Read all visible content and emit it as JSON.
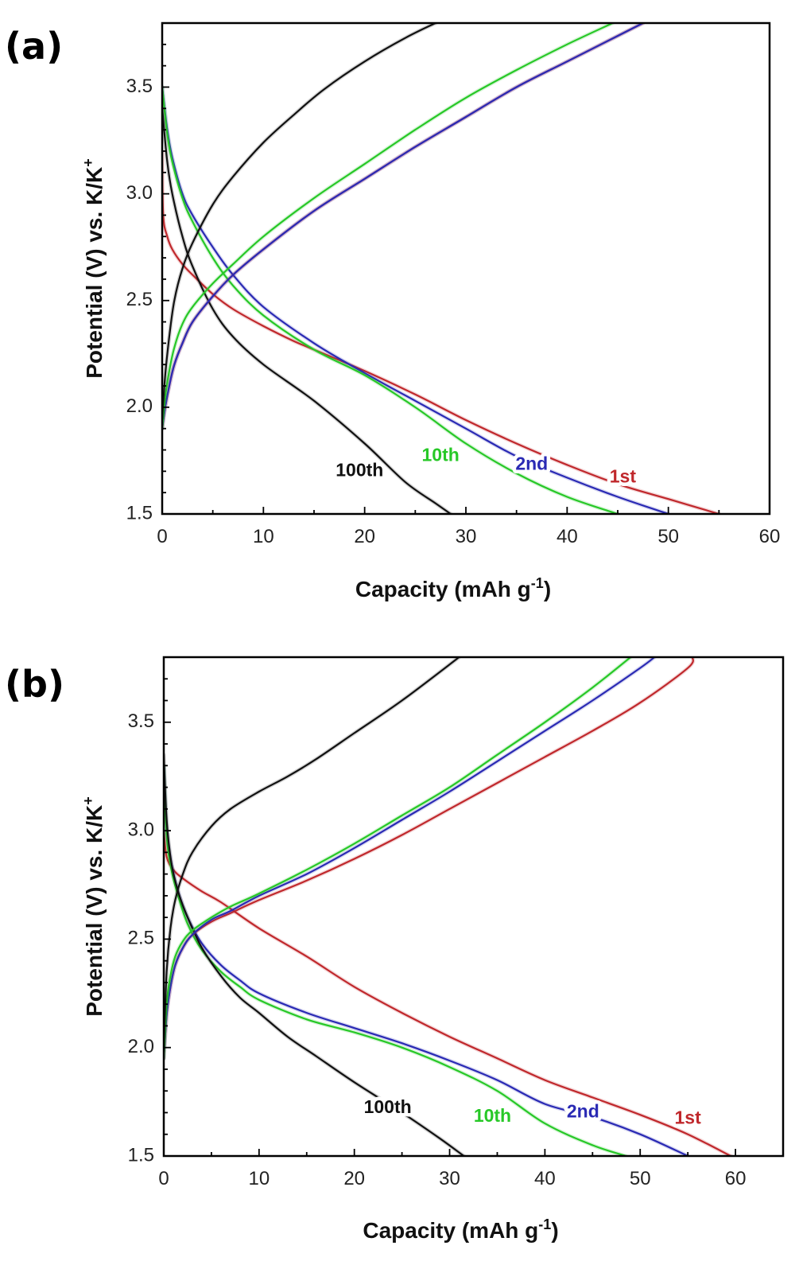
{
  "figure": {
    "background": "#ffffff",
    "colors": {
      "1st": "#c0282c",
      "2nd": "#2a2ab4",
      "10th": "#27c827",
      "100th": "#111111"
    }
  },
  "chart_data": [
    {
      "type": "line",
      "panel_label": "(a)",
      "xlabel": "Capacity (mAh g",
      "xlabel_sup": "-1",
      "xlabel_end": ")",
      "ylabel": "Potential (V) vs. K/K",
      "ylabel_sup": "+",
      "xlim": [
        0,
        60
      ],
      "ylim": [
        1.5,
        3.8
      ],
      "xticks": [
        0,
        10,
        20,
        30,
        40,
        50,
        60
      ],
      "yticks": [
        1.5,
        2.0,
        2.5,
        3.0,
        3.5
      ],
      "grid": false,
      "curve_labels": [
        {
          "text": "100th",
          "series": "100th",
          "x": 19.5,
          "y": 1.7
        },
        {
          "text": "10th",
          "series": "10th",
          "x": 27.5,
          "y": 1.77
        },
        {
          "text": "2nd",
          "series": "2nd",
          "x": 36.5,
          "y": 1.73
        },
        {
          "text": "1st",
          "series": "1st",
          "x": 45.5,
          "y": 1.67
        }
      ],
      "series": [
        {
          "key": "1st",
          "role": "discharge",
          "x": [
            0,
            0.1,
            0.5,
            1,
            2,
            3,
            5,
            7,
            10,
            13,
            16,
            20,
            25,
            30,
            35,
            40,
            45,
            50,
            55
          ],
          "y": [
            3.2,
            2.9,
            2.8,
            2.74,
            2.67,
            2.62,
            2.53,
            2.46,
            2.38,
            2.31,
            2.25,
            2.17,
            2.06,
            1.94,
            1.83,
            1.73,
            1.64,
            1.57,
            1.5
          ]
        },
        {
          "key": "2nd",
          "role": "discharge",
          "x": [
            0,
            0.5,
            1,
            2,
            3,
            5,
            7,
            10,
            15,
            20,
            25,
            30,
            35,
            40,
            45,
            50
          ],
          "y": [
            3.5,
            3.3,
            3.17,
            3.0,
            2.9,
            2.75,
            2.62,
            2.47,
            2.3,
            2.16,
            2.03,
            1.9,
            1.77,
            1.67,
            1.58,
            1.5
          ]
        },
        {
          "key": "10th",
          "role": "discharge",
          "x": [
            0,
            0.5,
            1,
            2,
            3,
            5,
            7,
            10,
            15,
            20,
            25,
            30,
            35,
            40,
            45
          ],
          "y": [
            3.5,
            3.28,
            3.15,
            2.98,
            2.87,
            2.7,
            2.57,
            2.43,
            2.27,
            2.15,
            2.0,
            1.83,
            1.69,
            1.58,
            1.5
          ]
        },
        {
          "key": "100th",
          "role": "discharge",
          "x": [
            0,
            0.5,
            1,
            2,
            3,
            5,
            7,
            10,
            15,
            20,
            24,
            27,
            28.5
          ],
          "y": [
            3.4,
            3.15,
            3.0,
            2.8,
            2.66,
            2.46,
            2.33,
            2.2,
            2.03,
            1.83,
            1.65,
            1.55,
            1.5
          ]
        },
        {
          "key": "1st",
          "role": "charge",
          "x": [
            0,
            0.3,
            0.7,
            1.2,
            2,
            3,
            5,
            7,
            10,
            15,
            20,
            25,
            30,
            35,
            40,
            45,
            47.5
          ],
          "y": [
            1.9,
            2.0,
            2.1,
            2.2,
            2.3,
            2.4,
            2.52,
            2.62,
            2.74,
            2.92,
            3.07,
            3.22,
            3.36,
            3.5,
            3.62,
            3.74,
            3.8
          ]
        },
        {
          "key": "2nd",
          "role": "charge",
          "x": [
            0,
            0.3,
            0.7,
            1.2,
            2,
            3,
            5,
            7,
            10,
            15,
            20,
            25,
            30,
            35,
            40,
            45,
            47.5
          ],
          "y": [
            1.9,
            2.0,
            2.1,
            2.2,
            2.3,
            2.4,
            2.52,
            2.62,
            2.74,
            2.92,
            3.07,
            3.22,
            3.36,
            3.5,
            3.62,
            3.74,
            3.8
          ]
        },
        {
          "key": "10th",
          "role": "charge",
          "x": [
            0,
            0.3,
            0.7,
            1.2,
            2,
            3,
            5,
            7,
            10,
            15,
            20,
            25,
            30,
            35,
            40,
            44.5
          ],
          "y": [
            1.9,
            2.05,
            2.17,
            2.28,
            2.39,
            2.47,
            2.58,
            2.67,
            2.8,
            2.98,
            3.14,
            3.3,
            3.45,
            3.58,
            3.7,
            3.8
          ]
        },
        {
          "key": "100th",
          "role": "charge",
          "x": [
            0,
            0.3,
            0.7,
            1.2,
            2,
            3,
            5,
            7,
            10,
            13,
            16,
            20,
            24,
            27
          ],
          "y": [
            1.95,
            2.15,
            2.33,
            2.5,
            2.65,
            2.77,
            2.95,
            3.08,
            3.24,
            3.37,
            3.49,
            3.62,
            3.73,
            3.8
          ]
        }
      ]
    },
    {
      "type": "line",
      "panel_label": "(b)",
      "xlabel": "Capacity (mAh g",
      "xlabel_sup": "-1",
      "xlabel_end": ")",
      "ylabel": "Potential (V) vs. K/K",
      "ylabel_sup": "+",
      "xlim": [
        0,
        65
      ],
      "ylim": [
        1.5,
        3.8
      ],
      "xticks": [
        0,
        10,
        20,
        30,
        40,
        50,
        60
      ],
      "yticks": [
        1.5,
        2.0,
        2.5,
        3.0,
        3.5
      ],
      "grid": false,
      "curve_labels": [
        {
          "text": "100th",
          "series": "100th",
          "x": 23.5,
          "y": 1.72
        },
        {
          "text": "10th",
          "series": "10th",
          "x": 34.5,
          "y": 1.68
        },
        {
          "text": "2nd",
          "series": "2nd",
          "x": 44,
          "y": 1.7
        },
        {
          "text": "1st",
          "series": "1st",
          "x": 55,
          "y": 1.67
        }
      ],
      "series": [
        {
          "key": "1st",
          "role": "discharge",
          "x": [
            0,
            0.3,
            1,
            2,
            4,
            6,
            10,
            15,
            20,
            25,
            30,
            35,
            40,
            45,
            50,
            55,
            59.5
          ],
          "y": [
            3.0,
            2.88,
            2.82,
            2.78,
            2.72,
            2.67,
            2.55,
            2.42,
            2.28,
            2.16,
            2.05,
            1.95,
            1.85,
            1.77,
            1.69,
            1.6,
            1.5
          ]
        },
        {
          "key": "2nd",
          "role": "discharge",
          "x": [
            0,
            0.3,
            0.8,
            1.5,
            2.5,
            4,
            6,
            8,
            10,
            15,
            20,
            25,
            30,
            35,
            40,
            45,
            50,
            55
          ],
          "y": [
            3.3,
            3.0,
            2.85,
            2.72,
            2.6,
            2.48,
            2.38,
            2.31,
            2.25,
            2.16,
            2.09,
            2.02,
            1.94,
            1.85,
            1.74,
            1.68,
            1.6,
            1.5
          ]
        },
        {
          "key": "10th",
          "role": "discharge",
          "x": [
            0,
            0.3,
            0.8,
            1.5,
            2.5,
            4,
            6,
            8,
            10,
            15,
            20,
            25,
            30,
            35,
            40,
            45,
            48.5
          ],
          "y": [
            3.3,
            2.98,
            2.82,
            2.7,
            2.57,
            2.45,
            2.35,
            2.28,
            2.22,
            2.13,
            2.07,
            2.0,
            1.91,
            1.8,
            1.65,
            1.55,
            1.5
          ]
        },
        {
          "key": "100th",
          "role": "discharge",
          "x": [
            0,
            0.3,
            0.8,
            1.5,
            2.5,
            4,
            6,
            8,
            10,
            13,
            16,
            20,
            25,
            29,
            31.5
          ],
          "y": [
            3.35,
            3.05,
            2.85,
            2.72,
            2.6,
            2.46,
            2.33,
            2.23,
            2.16,
            2.05,
            1.96,
            1.84,
            1.7,
            1.58,
            1.5
          ]
        },
        {
          "key": "1st",
          "role": "charge",
          "x": [
            0,
            0.3,
            0.7,
            1.2,
            2,
            3,
            5,
            7,
            10,
            15,
            20,
            25,
            30,
            35,
            40,
            45,
            50,
            55,
            55.5
          ],
          "y": [
            1.95,
            2.15,
            2.28,
            2.38,
            2.46,
            2.52,
            2.58,
            2.62,
            2.68,
            2.77,
            2.87,
            2.98,
            3.1,
            3.22,
            3.34,
            3.46,
            3.59,
            3.75,
            3.8
          ]
        },
        {
          "key": "2nd",
          "role": "charge",
          "x": [
            0,
            0.3,
            0.7,
            1.2,
            2,
            3,
            5,
            7,
            10,
            15,
            20,
            25,
            30,
            35,
            40,
            45,
            50,
            51.5
          ],
          "y": [
            1.95,
            2.15,
            2.28,
            2.38,
            2.46,
            2.52,
            2.59,
            2.63,
            2.7,
            2.8,
            2.92,
            3.05,
            3.18,
            3.32,
            3.46,
            3.6,
            3.75,
            3.8
          ]
        },
        {
          "key": "10th",
          "role": "charge",
          "x": [
            0,
            0.3,
            0.7,
            1.2,
            2,
            3,
            5,
            7,
            10,
            15,
            20,
            25,
            30,
            35,
            40,
            45,
            49
          ],
          "y": [
            1.95,
            2.2,
            2.33,
            2.42,
            2.49,
            2.54,
            2.6,
            2.65,
            2.71,
            2.82,
            2.94,
            3.07,
            3.2,
            3.35,
            3.5,
            3.66,
            3.8
          ]
        },
        {
          "key": "100th",
          "role": "charge",
          "x": [
            0,
            0.3,
            0.7,
            1.2,
            2,
            3,
            5,
            7,
            10,
            13,
            16,
            20,
            25,
            31
          ],
          "y": [
            2.0,
            2.35,
            2.55,
            2.68,
            2.8,
            2.9,
            3.02,
            3.1,
            3.18,
            3.25,
            3.33,
            3.45,
            3.6,
            3.8
          ]
        }
      ]
    }
  ]
}
